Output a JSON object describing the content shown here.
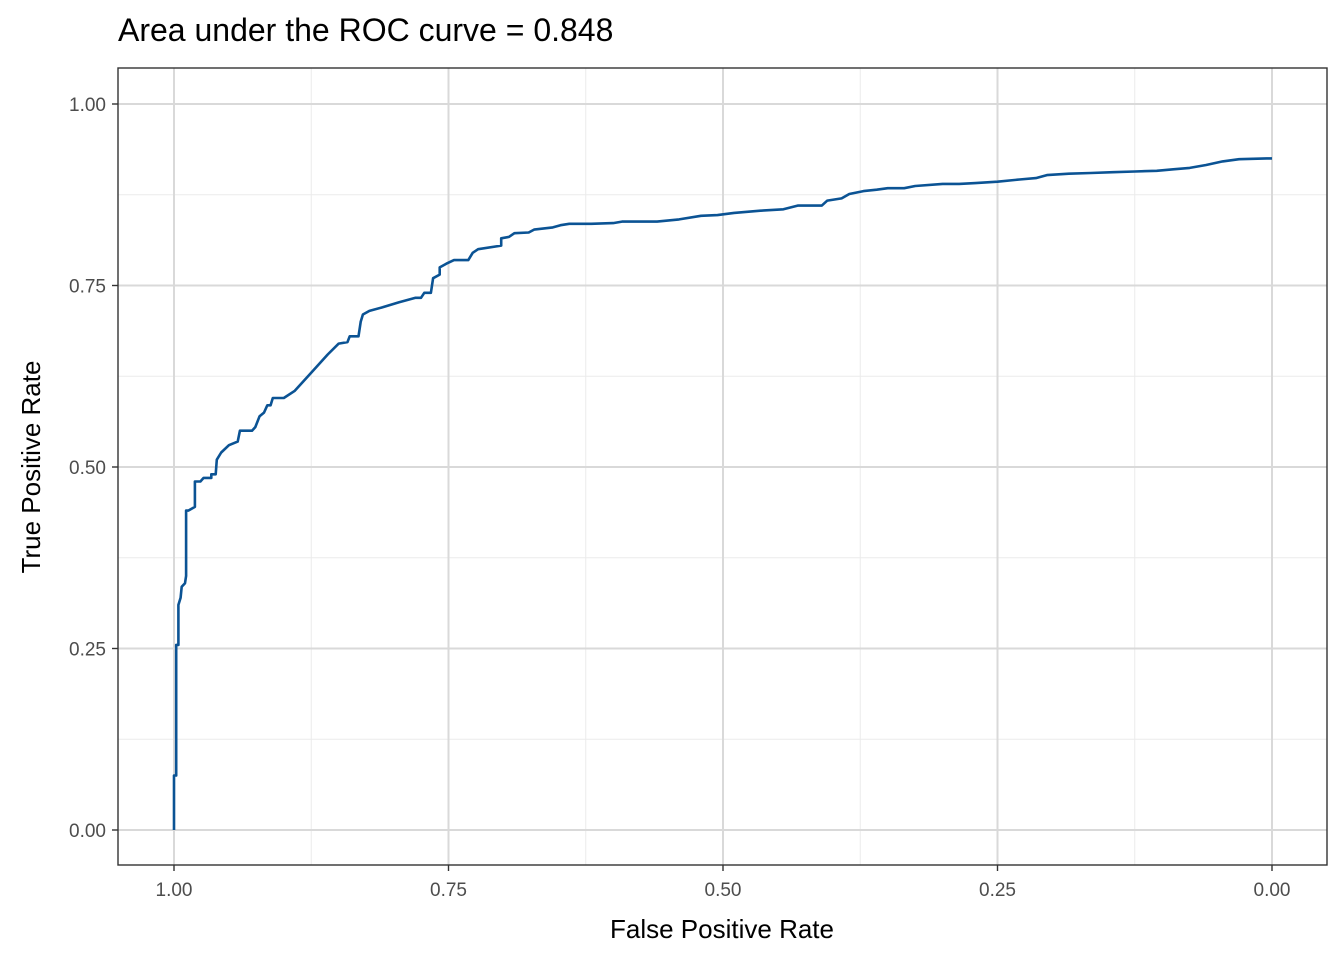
{
  "chart_data": {
    "type": "line",
    "title": "Area under the ROC curve = 0.848",
    "xlabel": "False Positive Rate",
    "ylabel": "True Positive Rate",
    "xlim": [
      1.0,
      0.0
    ],
    "ylim": [
      0.0,
      1.0
    ],
    "x_reversed": true,
    "x_ticks": [
      "1.00",
      "0.75",
      "0.50",
      "0.25",
      "0.00"
    ],
    "y_ticks": [
      "0.00",
      "0.25",
      "0.50",
      "0.75",
      "1.00"
    ],
    "grid": true,
    "line_color": "#0b5394",
    "series": [
      {
        "points": [
          [
            1.0,
            0.0
          ],
          [
            1.0,
            0.075
          ],
          [
            0.998,
            0.075
          ],
          [
            0.998,
            0.255
          ],
          [
            0.996,
            0.255
          ],
          [
            0.996,
            0.31
          ],
          [
            0.994,
            0.32
          ],
          [
            0.993,
            0.335
          ],
          [
            0.99,
            0.34
          ],
          [
            0.989,
            0.35
          ],
          [
            0.989,
            0.44
          ],
          [
            0.987,
            0.44
          ],
          [
            0.981,
            0.445
          ],
          [
            0.981,
            0.48
          ],
          [
            0.976,
            0.48
          ],
          [
            0.973,
            0.485
          ],
          [
            0.966,
            0.485
          ],
          [
            0.966,
            0.49
          ],
          [
            0.962,
            0.49
          ],
          [
            0.961,
            0.51
          ],
          [
            0.957,
            0.52
          ],
          [
            0.95,
            0.53
          ],
          [
            0.942,
            0.535
          ],
          [
            0.94,
            0.55
          ],
          [
            0.929,
            0.55
          ],
          [
            0.926,
            0.555
          ],
          [
            0.922,
            0.57
          ],
          [
            0.918,
            0.575
          ],
          [
            0.915,
            0.585
          ],
          [
            0.912,
            0.585
          ],
          [
            0.91,
            0.595
          ],
          [
            0.9,
            0.595
          ],
          [
            0.89,
            0.605
          ],
          [
            0.875,
            0.63
          ],
          [
            0.86,
            0.655
          ],
          [
            0.85,
            0.67
          ],
          [
            0.842,
            0.672
          ],
          [
            0.84,
            0.68
          ],
          [
            0.832,
            0.68
          ],
          [
            0.83,
            0.7
          ],
          [
            0.828,
            0.71
          ],
          [
            0.822,
            0.715
          ],
          [
            0.81,
            0.72
          ],
          [
            0.795,
            0.727
          ],
          [
            0.78,
            0.733
          ],
          [
            0.775,
            0.733
          ],
          [
            0.772,
            0.74
          ],
          [
            0.766,
            0.74
          ],
          [
            0.764,
            0.76
          ],
          [
            0.758,
            0.765
          ],
          [
            0.758,
            0.775
          ],
          [
            0.752,
            0.78
          ],
          [
            0.745,
            0.785
          ],
          [
            0.732,
            0.785
          ],
          [
            0.728,
            0.795
          ],
          [
            0.723,
            0.8
          ],
          [
            0.702,
            0.805
          ],
          [
            0.702,
            0.815
          ],
          [
            0.695,
            0.817
          ],
          [
            0.69,
            0.822
          ],
          [
            0.677,
            0.823
          ],
          [
            0.672,
            0.827
          ],
          [
            0.655,
            0.83
          ],
          [
            0.648,
            0.833
          ],
          [
            0.64,
            0.835
          ],
          [
            0.62,
            0.835
          ],
          [
            0.6,
            0.836
          ],
          [
            0.592,
            0.838
          ],
          [
            0.56,
            0.838
          ],
          [
            0.54,
            0.841
          ],
          [
            0.52,
            0.846
          ],
          [
            0.505,
            0.847
          ],
          [
            0.49,
            0.85
          ],
          [
            0.466,
            0.853
          ],
          [
            0.445,
            0.855
          ],
          [
            0.432,
            0.86
          ],
          [
            0.41,
            0.86
          ],
          [
            0.405,
            0.867
          ],
          [
            0.392,
            0.87
          ],
          [
            0.385,
            0.876
          ],
          [
            0.372,
            0.88
          ],
          [
            0.36,
            0.882
          ],
          [
            0.35,
            0.884
          ],
          [
            0.335,
            0.884
          ],
          [
            0.325,
            0.887
          ],
          [
            0.3,
            0.89
          ],
          [
            0.285,
            0.89
          ],
          [
            0.27,
            0.891
          ],
          [
            0.25,
            0.893
          ],
          [
            0.23,
            0.896
          ],
          [
            0.215,
            0.898
          ],
          [
            0.205,
            0.902
          ],
          [
            0.185,
            0.904
          ],
          [
            0.165,
            0.905
          ],
          [
            0.145,
            0.906
          ],
          [
            0.125,
            0.907
          ],
          [
            0.105,
            0.908
          ],
          [
            0.09,
            0.91
          ],
          [
            0.075,
            0.912
          ],
          [
            0.06,
            0.916
          ],
          [
            0.045,
            0.921
          ],
          [
            0.03,
            0.924
          ],
          [
            0.005,
            0.925
          ],
          [
            0.0,
            0.925
          ]
        ]
      }
    ]
  }
}
